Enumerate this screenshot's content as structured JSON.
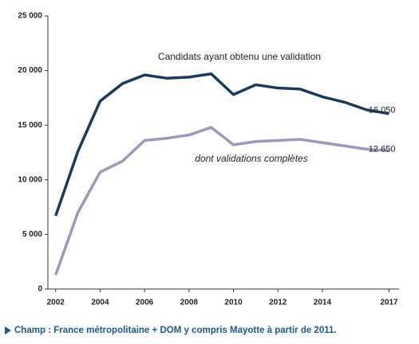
{
  "chart_data": {
    "type": "line",
    "x": [
      2002,
      2003,
      2004,
      2005,
      2006,
      2007,
      2008,
      2009,
      2010,
      2011,
      2012,
      2013,
      2014,
      2015,
      2016,
      2017
    ],
    "series": [
      {
        "name": "Candidats ayant obtenu une validation",
        "color": "#1b3a5c",
        "values": [
          6700,
          12600,
          17200,
          18800,
          19600,
          19300,
          19400,
          19700,
          17800,
          18700,
          18400,
          18300,
          17600,
          17100,
          16400,
          16050
        ],
        "value_labels": [
          null,
          null,
          null,
          null,
          null,
          null,
          null,
          null,
          null,
          null,
          null,
          null,
          null,
          null,
          null,
          "16 050"
        ]
      },
      {
        "name": "dont validations complètes",
        "color": "#9a9abb",
        "values": [
          1300,
          7000,
          10700,
          11700,
          13600,
          13800,
          14100,
          14800,
          13200,
          13500,
          13600,
          13700,
          13400,
          13100,
          12800,
          12650
        ],
        "value_labels": [
          null,
          null,
          null,
          null,
          null,
          null,
          null,
          null,
          null,
          null,
          null,
          null,
          null,
          null,
          null,
          "12 650"
        ]
      }
    ],
    "xlim": [
      2001.65,
      2017.45
    ],
    "xticks": [
      2002,
      2004,
      2006,
      2008,
      2010,
      2012,
      2014,
      2017
    ],
    "ylim": [
      0,
      25000
    ],
    "yticks": [
      0,
      {
        "value": 5000,
        "label": "5 000"
      },
      {
        "value": 10000,
        "label": "10 000"
      },
      {
        "value": 15000,
        "label": "15 000"
      },
      {
        "value": 20000,
        "label": "20 000"
      },
      {
        "value": 25000,
        "label": "25 000"
      }
    ],
    "grid": false,
    "note": "Champ : France métropolitaine + DOM y compris Mayotte à partir de 2011."
  }
}
